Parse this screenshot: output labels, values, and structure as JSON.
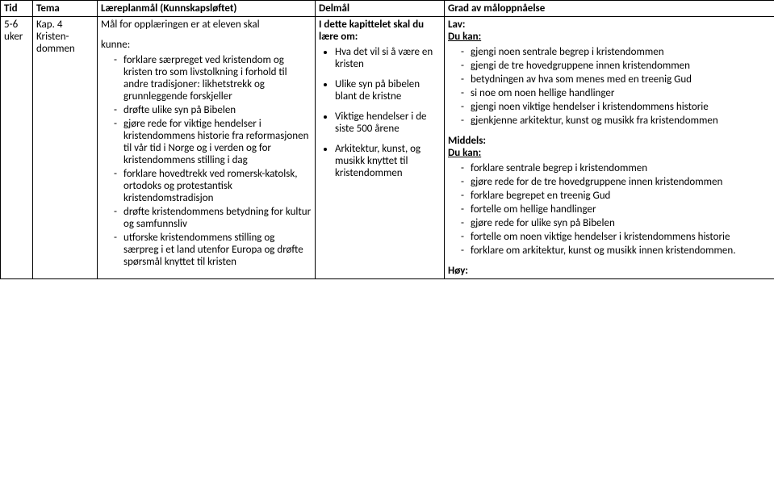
{
  "headers": {
    "tid": "Tid",
    "tema": "Tema",
    "mal": "Læreplanmål (Kunnskapsløftet)",
    "delmal": "Delmål",
    "grad": "Grad av måloppnåelse"
  },
  "row": {
    "tid": "5-6 uker",
    "tema": "Kap. 4 Kristen-dommen",
    "mal_intro": "Mål for opplæringen er at eleven skal",
    "mal_kunne": "kunne:",
    "mal_points": [
      "forklare særpreget ved kristendom og kristen tro som livstolkning i forhold til andre tradisjoner: likhetstrekk og grunnleggende forskjeller",
      "drøfte ulike syn på Bibelen",
      "gjøre rede for viktige hendelser i kristendommens historie fra reformasjonen til vår tid i Norge og i verden og for kristendommens stilling i dag",
      "forklare hovedtrekk ved romersk-katolsk, ortodoks og protestantisk kristendomstradisjon",
      "drøfte kristendommens betydning for kultur og samfunnsliv",
      "utforske kristendommens stilling og særpreg i et land utenfor Europa og drøfte spørsmål knyttet til kristen"
    ],
    "delmal_intro": "I dette kapittelet skal du lære om:",
    "delmal_points": [
      "Hva det vil si å være en kristen",
      "Ulike syn på bibelen blant de kristne",
      "Viktige hendelser i de siste 500 årene",
      "Arkitektur, kunst, og musikk knyttet til kristendommen"
    ],
    "grad_lav_label": "Lav:",
    "grad_dukan": "Du kan:",
    "grad_lav_points": [
      "gjengi noen sentrale begrep i kristendommen",
      "gjengi de tre hovedgruppene innen kristendommen",
      "betydningen av hva som menes med en treenig Gud",
      "si noe om noen hellige handlinger",
      "gjengi noen viktige hendelser i kristendommens historie",
      "gjenkjenne arkitektur, kunst og musikk fra kristendommen"
    ],
    "grad_middels_label": "Middels:",
    "grad_middels_points": [
      "forklare sentrale begrep i kristendommen",
      "gjøre rede for de tre hovedgruppene innen kristendommen",
      "forklare begrepet en treenig Gud",
      "fortelle om hellige handlinger",
      "gjøre rede for ulike syn på Bibelen",
      "fortelle om noen viktige hendelser i kristendommens historie",
      "forklare om arkitektur, kunst og musikk innen kristendommen."
    ],
    "grad_hoy_label": "Høy:"
  }
}
